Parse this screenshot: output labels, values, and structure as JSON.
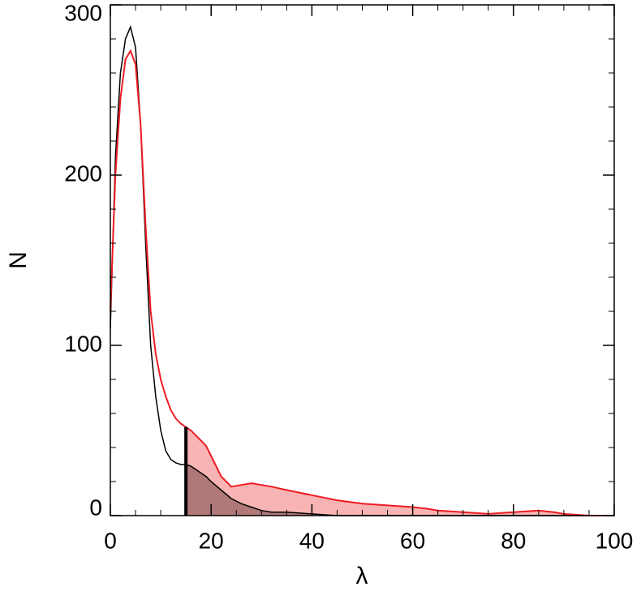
{
  "chart_data": {
    "type": "line",
    "x_label": "λ",
    "y_label": "N",
    "x": [
      0,
      1,
      2,
      3,
      4,
      5,
      6,
      7,
      8,
      9,
      10,
      11,
      12,
      13,
      14,
      15,
      16,
      17,
      18,
      19,
      20,
      22,
      24,
      26,
      28,
      30,
      32,
      35,
      40,
      45,
      50,
      55,
      60,
      63,
      65,
      70,
      75,
      80,
      85,
      88,
      90,
      95,
      100
    ],
    "series": [
      {
        "name": "black",
        "color": "#000000",
        "fill": "#b07878",
        "values": [
          110,
          210,
          260,
          280,
          287,
          275,
          230,
          160,
          100,
          70,
          50,
          38,
          33,
          31,
          30,
          30,
          29,
          27,
          25,
          23,
          20,
          15,
          10,
          7,
          5,
          3,
          2,
          2,
          1,
          0,
          0,
          0,
          0,
          0,
          0,
          0,
          0,
          0,
          0,
          0,
          0,
          0,
          0
        ]
      },
      {
        "name": "red",
        "color": "#ee1c24",
        "fill": "#f8b4b4",
        "values": [
          120,
          200,
          245,
          268,
          273,
          265,
          230,
          170,
          120,
          95,
          80,
          70,
          62,
          57,
          54,
          52,
          50,
          47,
          44,
          41,
          35,
          23,
          17,
          18,
          19,
          18,
          17,
          15,
          12,
          9,
          7,
          6,
          5,
          4,
          3,
          2,
          1,
          2,
          3,
          2,
          1,
          0,
          0
        ]
      }
    ],
    "threshold": 15,
    "xlim": [
      0,
      100
    ],
    "xticks": [
      0,
      20,
      40,
      60,
      80,
      100
    ],
    "ylim": [
      0,
      300
    ],
    "yticks": [
      0,
      100,
      200,
      300
    ]
  }
}
